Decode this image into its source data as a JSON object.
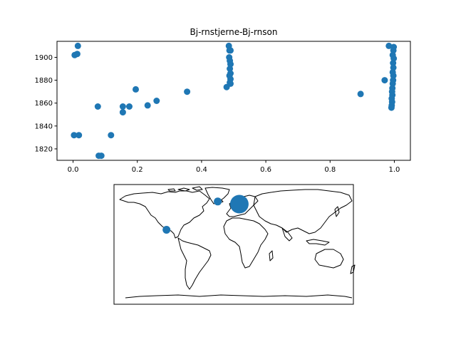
{
  "chart_data": [
    {
      "type": "scatter",
      "title": "Bj-rnstjerne-Bj-rnson",
      "xlabel": "",
      "ylabel": "",
      "xlim": [
        -0.05,
        1.05
      ],
      "ylim": [
        1810,
        1914
      ],
      "x_ticks": [
        0.0,
        0.2,
        0.4,
        0.6,
        0.8,
        1.0
      ],
      "x_tick_labels": [
        "0.0",
        "0.2",
        "0.4",
        "0.6",
        "0.8",
        "1.0"
      ],
      "y_ticks": [
        1820,
        1840,
        1860,
        1880,
        1900
      ],
      "y_tick_labels": [
        "1820",
        "1840",
        "1860",
        "1880",
        "1900"
      ],
      "grid": false,
      "color": "#1f77b4",
      "points": [
        [
          0.015,
          1910
        ],
        [
          0.005,
          1902
        ],
        [
          0.013,
          1903
        ],
        [
          0.003,
          1832
        ],
        [
          0.018,
          1832
        ],
        [
          0.118,
          1832
        ],
        [
          0.077,
          1857
        ],
        [
          0.155,
          1857
        ],
        [
          0.175,
          1857
        ],
        [
          0.155,
          1852
        ],
        [
          0.195,
          1872
        ],
        [
          0.232,
          1858
        ],
        [
          0.26,
          1862
        ],
        [
          0.355,
          1870
        ],
        [
          0.08,
          1814
        ],
        [
          0.088,
          1814
        ],
        [
          0.478,
          1874
        ],
        [
          0.485,
          1910
        ],
        [
          0.487,
          1906
        ],
        [
          0.49,
          1906
        ],
        [
          0.486,
          1900
        ],
        [
          0.488,
          1897
        ],
        [
          0.49,
          1894
        ],
        [
          0.488,
          1890
        ],
        [
          0.49,
          1886
        ],
        [
          0.487,
          1884
        ],
        [
          0.49,
          1881
        ],
        [
          0.488,
          1878
        ],
        [
          0.49,
          1877
        ],
        [
          0.895,
          1868
        ],
        [
          0.97,
          1880
        ],
        [
          0.983,
          1910
        ],
        [
          0.998,
          1909
        ],
        [
          0.997,
          1906
        ],
        [
          0.995,
          1902
        ],
        [
          0.998,
          1899
        ],
        [
          0.996,
          1895
        ],
        [
          0.997,
          1891
        ],
        [
          0.995,
          1887
        ],
        [
          0.997,
          1884
        ],
        [
          0.996,
          1880
        ],
        [
          0.995,
          1877
        ],
        [
          0.994,
          1873
        ],
        [
          0.993,
          1870
        ],
        [
          0.994,
          1867
        ],
        [
          0.992,
          1864
        ],
        [
          0.993,
          1861
        ],
        [
          0.992,
          1858
        ],
        [
          0.991,
          1856
        ]
      ]
    },
    {
      "type": "map",
      "projection": "equirectangular",
      "lon_range": [
        -180,
        180
      ],
      "lat_range": [
        -90,
        90
      ],
      "color": "#1f77b4",
      "markers": [
        {
          "lon": 8.5,
          "lat": 60.5,
          "size": "large"
        },
        {
          "lon": -101,
          "lat": 22,
          "size": "small"
        },
        {
          "lon": -24,
          "lat": 64.5,
          "size": "small"
        }
      ]
    }
  ]
}
